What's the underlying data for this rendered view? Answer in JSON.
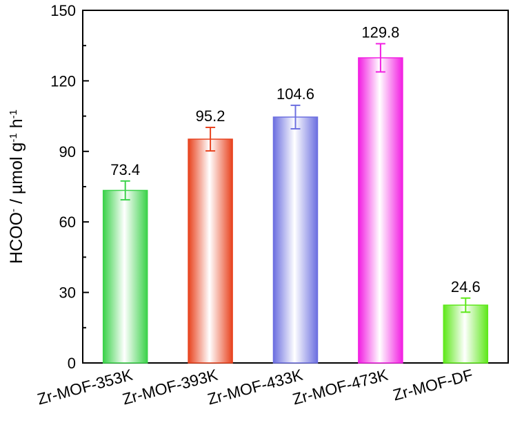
{
  "chart_data": {
    "type": "bar",
    "title": "",
    "xlabel": "",
    "ylabel": {
      "main": "HCOO",
      "sup1": "-",
      "middle": " / µmol g",
      "sup2": "-1",
      "end": " h",
      "sup3": "-1"
    },
    "ylim": [
      0,
      150
    ],
    "yticks": [
      0,
      30,
      60,
      90,
      120,
      150
    ],
    "ytick_labels": [
      "0",
      "30",
      "60",
      "90",
      "120",
      "150"
    ],
    "grid": false,
    "legend": "none",
    "categories": [
      "Zr-MOF-353K",
      "Zr-MOF-393K",
      "Zr-MOF-433K",
      "Zr-MOF-473K",
      "Zr-MOF-DF"
    ],
    "values": [
      73.4,
      95.2,
      104.6,
      129.8,
      24.6
    ],
    "value_labels": [
      "73.4",
      "95.2",
      "104.6",
      "129.8",
      "24.6"
    ],
    "errors": [
      4.0,
      5.0,
      5.0,
      6.0,
      3.0
    ],
    "colors": [
      "#3bd24a",
      "#e8421e",
      "#6c6fe0",
      "#f21ee2",
      "#5ee81a"
    ]
  }
}
